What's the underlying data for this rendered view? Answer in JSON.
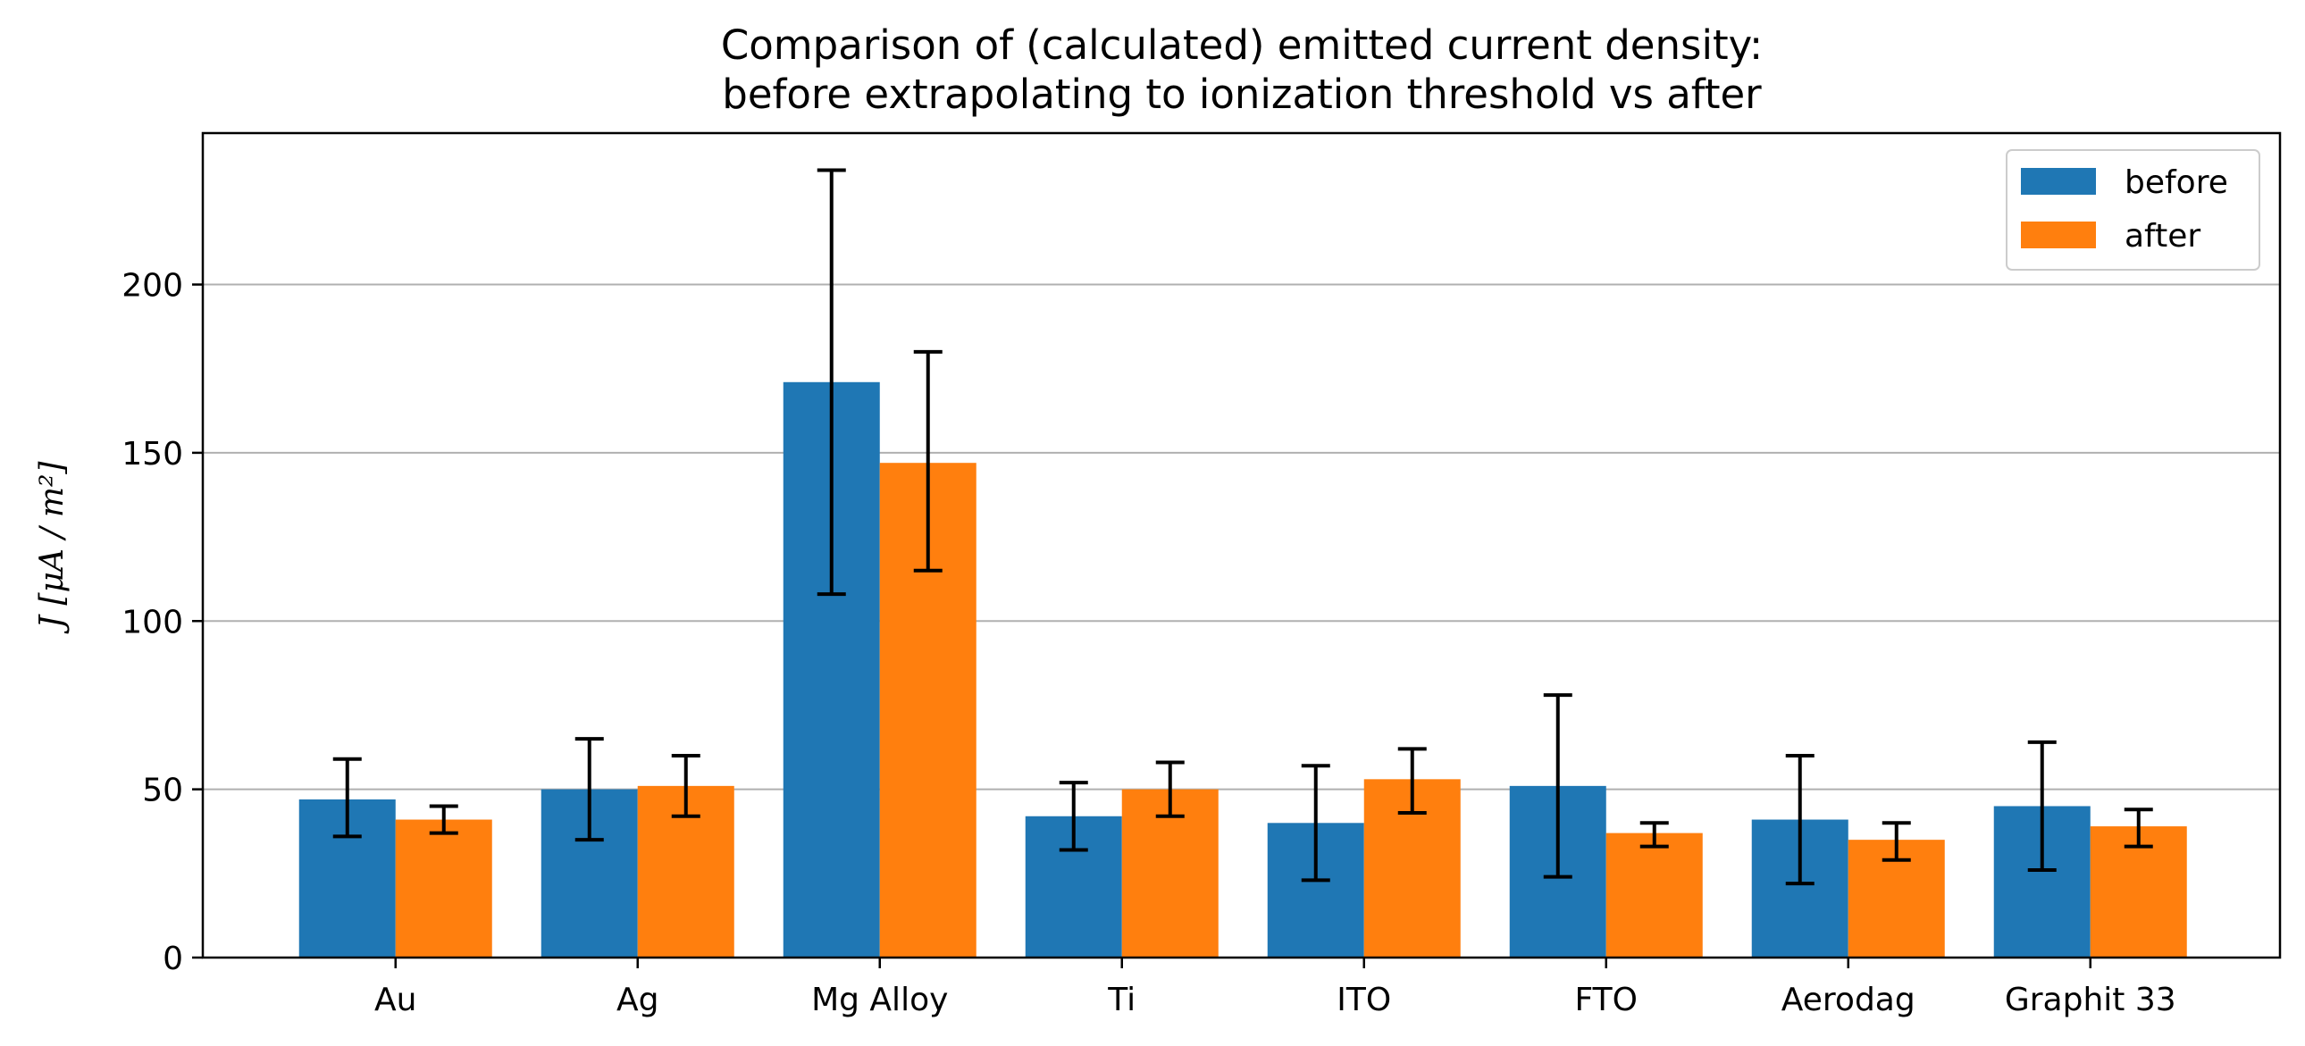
{
  "chart_data": {
    "type": "bar",
    "title_lines": [
      "Comparison of (calculated) emitted current density:",
      "before extrapolating to ionization threshold vs after"
    ],
    "xlabel": "",
    "ylabel": "J [μA / m²]",
    "categories": [
      "Au",
      "Ag",
      "Mg Alloy",
      "Ti",
      "ITO",
      "FTO",
      "Aerodag",
      "Graphit 33"
    ],
    "series": [
      {
        "name": "before",
        "color": "#1f77b4",
        "values": [
          47,
          50,
          171,
          42,
          40,
          51,
          41,
          45
        ],
        "error_low": [
          36,
          35,
          108,
          32,
          23,
          24,
          22,
          26
        ],
        "error_high": [
          59,
          65,
          234,
          52,
          57,
          78,
          60,
          64
        ]
      },
      {
        "name": "after",
        "color": "#ff7f0e",
        "values": [
          41,
          51,
          147,
          50,
          53,
          37,
          35,
          39
        ],
        "error_low": [
          37,
          42,
          115,
          42,
          43,
          33,
          29,
          33
        ],
        "error_high": [
          45,
          60,
          180,
          58,
          62,
          40,
          40,
          44
        ]
      }
    ],
    "ylim": [
      0,
      245
    ],
    "yticks": [
      0,
      50,
      100,
      150,
      200
    ],
    "grid": "horizontal",
    "legend_position": "upper right"
  }
}
